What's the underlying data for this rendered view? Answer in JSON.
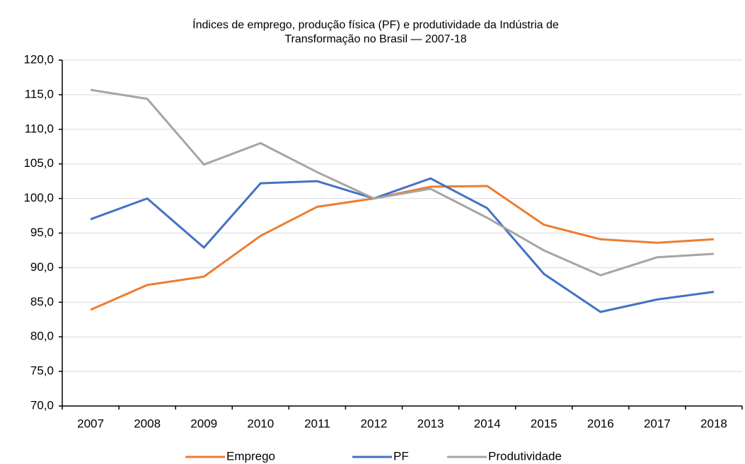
{
  "chart_data": {
    "type": "line",
    "title": [
      "Índices de emprego, produção física (PF) e produtividade da Indústria de",
      "Transformação no Brasil — 2007-18"
    ],
    "categories": [
      "2007",
      "2008",
      "2009",
      "2010",
      "2011",
      "2012",
      "2013",
      "2014",
      "2015",
      "2016",
      "2017",
      "2018"
    ],
    "series": [
      {
        "name": "Emprego",
        "color": "#ed7d31",
        "values": [
          83.9,
          87.5,
          88.7,
          94.6,
          98.8,
          100.0,
          101.7,
          101.8,
          96.2,
          94.1,
          93.6,
          94.1
        ]
      },
      {
        "name": "PF",
        "color": "#4472c4",
        "values": [
          97.0,
          100.0,
          92.9,
          102.2,
          102.5,
          100.0,
          102.9,
          98.6,
          89.1,
          83.6,
          85.4,
          86.5
        ]
      },
      {
        "name": "Produtividade",
        "color": "#a5a5a5",
        "values": [
          115.7,
          114.4,
          104.9,
          108.0,
          103.8,
          100.0,
          101.4,
          97.2,
          92.5,
          88.9,
          91.5,
          92.0
        ]
      }
    ],
    "ylim": [
      70,
      120
    ],
    "yticks": [
      {
        "value": 70,
        "label": "70,0"
      },
      {
        "value": 75,
        "label": "75,0"
      },
      {
        "value": 80,
        "label": "80,0"
      },
      {
        "value": 85,
        "label": "85,0"
      },
      {
        "value": 90,
        "label": "90,0"
      },
      {
        "value": 95,
        "label": "95,0"
      },
      {
        "value": 100,
        "label": "100,0"
      },
      {
        "value": 105,
        "label": "105,0"
      },
      {
        "value": 110,
        "label": "110,0"
      },
      {
        "value": 115,
        "label": "115,0"
      },
      {
        "value": 120,
        "label": "120,0"
      }
    ],
    "grid": true,
    "legend": "bottom"
  }
}
